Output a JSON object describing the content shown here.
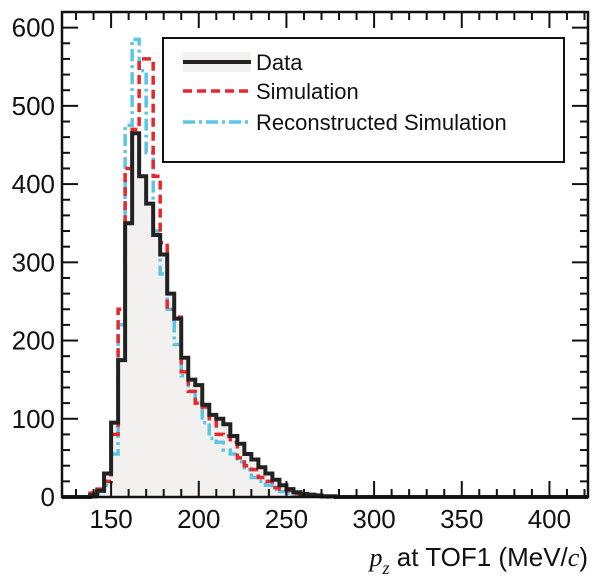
{
  "chart_data": {
    "type": "line",
    "title": "",
    "xlabel": {
      "var": "p",
      "sub": "z",
      "text": " at TOF1 (MeV/",
      "unit_italic": "c",
      "close": ")"
    },
    "ylabel": "",
    "xlim": [
      122,
      422
    ],
    "ylim": [
      0,
      620
    ],
    "xticks": [
      150,
      200,
      250,
      300,
      350,
      400
    ],
    "yticks": [
      0,
      100,
      200,
      300,
      400,
      500,
      600
    ],
    "grid": false,
    "legend_position": "top-right",
    "bin_edges": [
      122,
      126,
      130,
      134,
      138,
      142,
      146,
      150,
      154,
      158,
      162,
      166,
      170,
      174,
      178,
      182,
      186,
      190,
      194,
      198,
      202,
      206,
      210,
      214,
      218,
      222,
      226,
      230,
      234,
      238,
      242,
      246,
      250,
      254,
      258,
      262,
      266,
      270,
      274,
      278,
      282,
      286,
      290,
      294,
      298,
      302,
      306,
      310,
      314,
      318,
      322,
      326,
      330,
      334,
      338,
      342,
      346,
      350,
      354,
      358,
      362,
      366,
      370,
      374,
      378,
      382,
      386,
      390,
      394,
      398,
      402,
      406,
      410,
      414,
      418,
      422
    ],
    "series": [
      {
        "name": "Data",
        "style": "solid",
        "color": "#222222",
        "fill": "#f2f1f0",
        "values": [
          0,
          0,
          0,
          0,
          2,
          8,
          30,
          95,
          175,
          350,
          465,
          410,
          375,
          335,
          310,
          260,
          228,
          178,
          150,
          143,
          118,
          105,
          100,
          93,
          78,
          68,
          55,
          48,
          38,
          30,
          22,
          15,
          10,
          6,
          4,
          3,
          2,
          1,
          1,
          0,
          0,
          0,
          0,
          0,
          0,
          0,
          0,
          0,
          0,
          0,
          0,
          0,
          0,
          0,
          0,
          0,
          0,
          0,
          0,
          0,
          0,
          0,
          0,
          0,
          0,
          0,
          0,
          0,
          0,
          0,
          0,
          0,
          0,
          0,
          0
        ]
      },
      {
        "name": "Simulation",
        "style": "dashed",
        "color": "#e8262b",
        "values": [
          0,
          0,
          0,
          0,
          5,
          10,
          20,
          80,
          240,
          420,
          470,
          560,
          560,
          410,
          325,
          240,
          230,
          160,
          135,
          120,
          115,
          100,
          80,
          78,
          70,
          50,
          40,
          35,
          25,
          20,
          12,
          10,
          8,
          4,
          3,
          2,
          1,
          1,
          0,
          0,
          0,
          0,
          0,
          0,
          0,
          0,
          0,
          0,
          0,
          0,
          0,
          0,
          0,
          0,
          0,
          0,
          0,
          0,
          0,
          0,
          0,
          0,
          0,
          0,
          0,
          0,
          0,
          0,
          0,
          0,
          0,
          0,
          0,
          0,
          0
        ]
      },
      {
        "name": "Reconstructed Simulation",
        "style": "dashdot",
        "color": "#5bc5e6",
        "values": [
          0,
          0,
          0,
          0,
          0,
          5,
          15,
          55,
          220,
          475,
          585,
          545,
          440,
          340,
          285,
          240,
          195,
          155,
          135,
          120,
          95,
          75,
          70,
          60,
          55,
          45,
          35,
          25,
          20,
          15,
          10,
          7,
          5,
          3,
          2,
          1,
          1,
          0,
          0,
          0,
          0,
          0,
          0,
          0,
          0,
          0,
          0,
          0,
          0,
          0,
          0,
          0,
          0,
          0,
          0,
          0,
          0,
          0,
          0,
          0,
          0,
          0,
          0,
          0,
          0,
          0,
          0,
          0,
          0,
          0,
          0,
          0,
          0,
          0,
          0
        ]
      }
    ]
  }
}
